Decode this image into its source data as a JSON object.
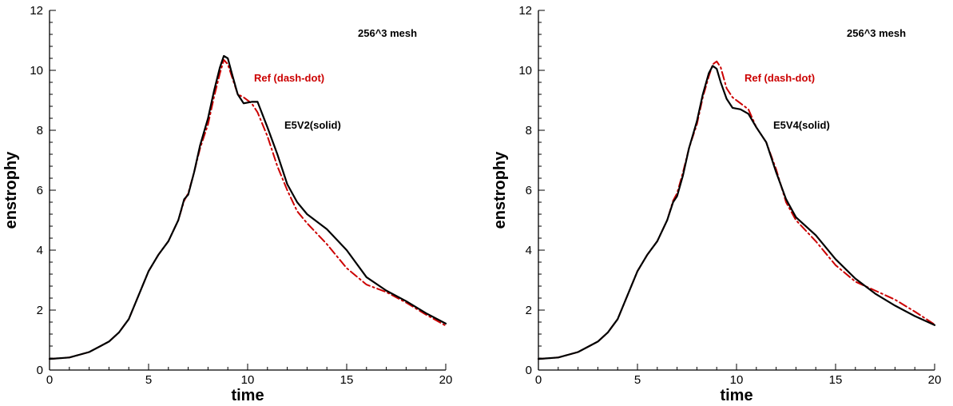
{
  "chart_data": [
    {
      "type": "line",
      "title": "",
      "xlabel": "time",
      "ylabel": "enstrophy",
      "xlim": [
        0,
        20
      ],
      "ylim": [
        0,
        12
      ],
      "xticks": [
        0,
        5,
        10,
        15,
        20
      ],
      "yticks": [
        0,
        2,
        4,
        6,
        8,
        10,
        12
      ],
      "grid": false,
      "annotations": [
        {
          "text": "256^3 mesh",
          "color": "#000000"
        },
        {
          "text": "Ref (dash-dot)",
          "color": "#cc0000"
        },
        {
          "text": "E5V2(solid)",
          "color": "#000000"
        }
      ],
      "series": [
        {
          "name": "E5V2",
          "style": "solid",
          "color": "#000000",
          "x": [
            0,
            1,
            2,
            3,
            3.5,
            4,
            4.5,
            5,
            5.5,
            6,
            6.5,
            6.8,
            7,
            7.3,
            7.6,
            8,
            8.3,
            8.6,
            8.8,
            9.0,
            9.2,
            9.5,
            9.8,
            10.2,
            10.5,
            11,
            11.5,
            12,
            12.5,
            13,
            14,
            15,
            16,
            17,
            18,
            19,
            20
          ],
          "y": [
            0.37,
            0.42,
            0.6,
            0.95,
            1.25,
            1.7,
            2.5,
            3.3,
            3.85,
            4.3,
            5.0,
            5.7,
            5.85,
            6.6,
            7.5,
            8.4,
            9.3,
            10.1,
            10.48,
            10.4,
            9.9,
            9.2,
            8.9,
            8.95,
            8.95,
            8.1,
            7.2,
            6.2,
            5.6,
            5.2,
            4.7,
            4.0,
            3.1,
            2.65,
            2.3,
            1.9,
            1.55
          ]
        },
        {
          "name": "Ref",
          "style": "dash-dot",
          "color": "#cc0000",
          "x": [
            0,
            1,
            2,
            3,
            3.5,
            4,
            4.5,
            5,
            5.5,
            6,
            6.5,
            6.8,
            7,
            7.3,
            7.6,
            8,
            8.3,
            8.6,
            8.8,
            9.0,
            9.2,
            9.5,
            9.8,
            10.2,
            10.5,
            11,
            11.5,
            12,
            12.5,
            13,
            14,
            15,
            16,
            17,
            18,
            19,
            20
          ],
          "y": [
            0.37,
            0.42,
            0.6,
            0.95,
            1.25,
            1.7,
            2.5,
            3.3,
            3.85,
            4.3,
            5.0,
            5.65,
            5.9,
            6.6,
            7.4,
            8.2,
            9.1,
            9.9,
            10.35,
            10.2,
            9.8,
            9.2,
            9.1,
            8.9,
            8.6,
            7.8,
            6.8,
            6.0,
            5.3,
            4.9,
            4.2,
            3.4,
            2.85,
            2.6,
            2.25,
            1.85,
            1.48
          ]
        }
      ]
    },
    {
      "type": "line",
      "title": "",
      "xlabel": "time",
      "ylabel": "enstrophy",
      "xlim": [
        0,
        20
      ],
      "ylim": [
        0,
        12
      ],
      "xticks": [
        0,
        5,
        10,
        15,
        20
      ],
      "yticks": [
        0,
        2,
        4,
        6,
        8,
        10,
        12
      ],
      "grid": false,
      "annotations": [
        {
          "text": "256^3 mesh",
          "color": "#000000"
        },
        {
          "text": "Ref (dash-dot)",
          "color": "#cc0000"
        },
        {
          "text": "E5V4(solid)",
          "color": "#000000"
        }
      ],
      "series": [
        {
          "name": "E5V4",
          "style": "solid",
          "color": "#000000",
          "x": [
            0,
            1,
            2,
            3,
            3.5,
            4,
            4.5,
            5,
            5.5,
            6,
            6.5,
            6.8,
            7,
            7.3,
            7.6,
            8,
            8.3,
            8.6,
            8.8,
            9.0,
            9.2,
            9.5,
            9.8,
            10.2,
            10.6,
            11,
            11.5,
            12,
            12.5,
            13,
            14,
            15,
            16,
            17,
            18,
            19,
            20
          ],
          "y": [
            0.37,
            0.42,
            0.6,
            0.95,
            1.25,
            1.7,
            2.5,
            3.3,
            3.85,
            4.3,
            5.0,
            5.6,
            5.8,
            6.5,
            7.4,
            8.3,
            9.2,
            9.9,
            10.15,
            10.05,
            9.6,
            9.05,
            8.75,
            8.7,
            8.55,
            8.1,
            7.6,
            6.6,
            5.7,
            5.1,
            4.5,
            3.7,
            3.05,
            2.55,
            2.15,
            1.8,
            1.5
          ]
        },
        {
          "name": "Ref",
          "style": "dash-dot",
          "color": "#cc0000",
          "x": [
            0,
            1,
            2,
            3,
            3.5,
            4,
            4.5,
            5,
            5.5,
            6,
            6.5,
            6.8,
            7,
            7.3,
            7.6,
            8,
            8.3,
            8.6,
            8.8,
            9.0,
            9.2,
            9.5,
            9.8,
            10.2,
            10.6,
            11,
            11.5,
            12,
            12.5,
            13,
            14,
            15,
            16,
            17,
            18,
            19,
            20
          ],
          "y": [
            0.37,
            0.42,
            0.6,
            0.95,
            1.25,
            1.7,
            2.5,
            3.3,
            3.85,
            4.3,
            5.0,
            5.65,
            5.9,
            6.6,
            7.4,
            8.2,
            9.1,
            9.8,
            10.2,
            10.3,
            10.1,
            9.4,
            9.1,
            8.9,
            8.7,
            8.1,
            7.6,
            6.7,
            5.6,
            5.0,
            4.3,
            3.5,
            2.95,
            2.65,
            2.35,
            1.95,
            1.52
          ]
        }
      ]
    }
  ]
}
